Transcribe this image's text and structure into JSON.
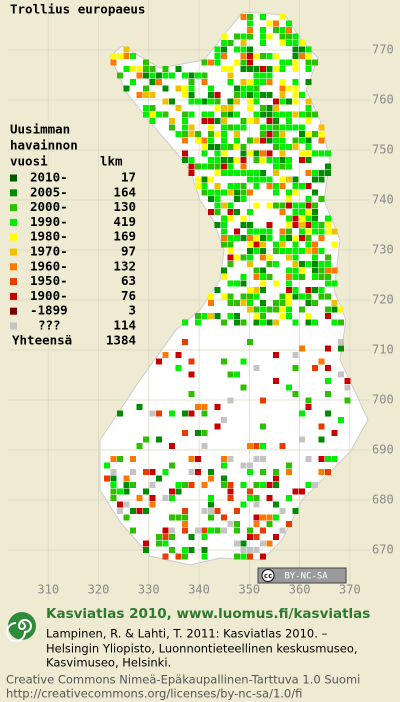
{
  "title": "Trollius europaeus",
  "map": {
    "xlim": [
      302,
      374
    ],
    "ylim": [
      660,
      780
    ],
    "xticks": [
      310,
      320,
      330,
      340,
      350,
      360,
      370
    ],
    "yticks": [
      770,
      760,
      750,
      740,
      730,
      720,
      710,
      700,
      690,
      680,
      670
    ]
  },
  "legend": {
    "heading": [
      "Uusimman",
      "havainnon",
      "vuosi"
    ],
    "count_heading": "lkm",
    "entries": [
      {
        "label": "2010-",
        "count": 17,
        "color": "#005a00"
      },
      {
        "label": "2005-",
        "count": 164,
        "color": "#008c00"
      },
      {
        "label": "2000-",
        "count": 130,
        "color": "#2cc000"
      },
      {
        "label": "1990-",
        "count": 419,
        "color": "#00ee00"
      },
      {
        "label": "1980-",
        "count": 169,
        "color": "#ffff00"
      },
      {
        "label": "1970-",
        "count": 97,
        "color": "#f0c000"
      },
      {
        "label": "1960-",
        "count": 132,
        "color": "#ff7800"
      },
      {
        "label": "1950-",
        "count": 63,
        "color": "#e83c00"
      },
      {
        "label": "1900-",
        "count": 76,
        "color": "#c80000"
      },
      {
        "label": "-1899",
        "count": 3,
        "color": "#780000"
      },
      {
        "label": "???",
        "count": 114,
        "color": "#c4c4c4"
      }
    ],
    "total_label": "Yhteensä",
    "total": 1384
  },
  "cc_badge": {
    "icon": "cc",
    "text": "BY-NC-SA"
  },
  "footer": {
    "heading": "Kasviatlas 2010, www.luomus.fi/kasviatlas",
    "citation": [
      "Lampinen, R. & Lahti, T. 2011: Kasviatlas 2010. –",
      "Helsingin Yliopisto, Luonnontieteellinen keskusmuseo,",
      "Kasvimuseo, Helsinki."
    ],
    "license": [
      "Creative Commons Nimeä-Epäkaupallinen-Tarttuva 1.0 Suomi",
      "http://creativecommons.org/licenses/by-nc-sa/1.0/fi"
    ]
  }
}
